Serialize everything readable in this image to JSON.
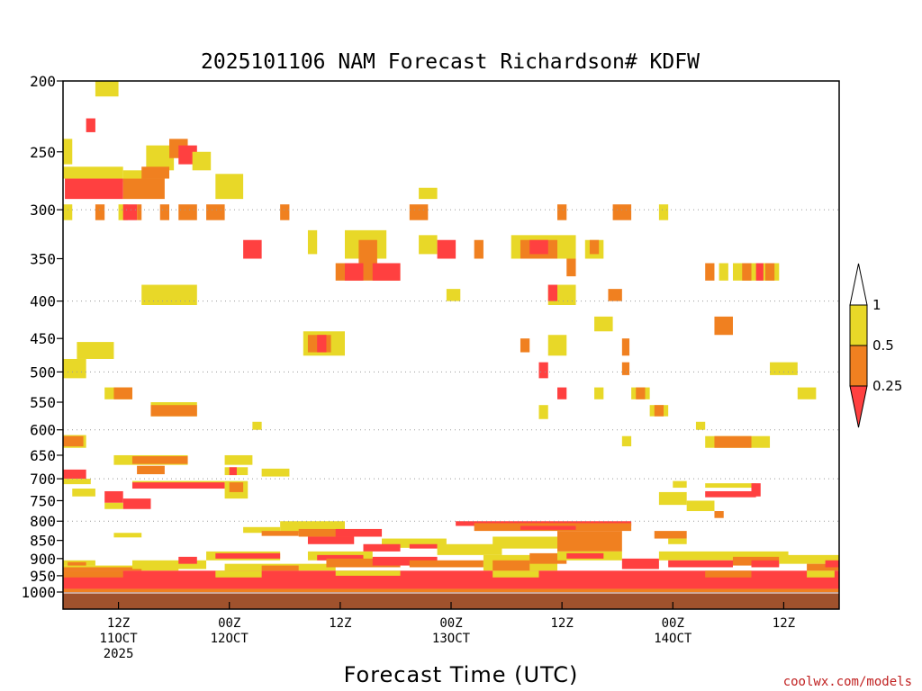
{
  "chart_data": {
    "type": "heatmap",
    "title": "2025101106 NAM Forecast Richardson# KDFW",
    "xlabel": "Forecast Time (UTC)",
    "ylabel": "",
    "credit": "coolwx.com/models",
    "y_scale": "log-pressure",
    "ylim": [
      1000,
      200
    ],
    "xlim_hours": [
      0,
      84
    ],
    "y_ticks": [
      200,
      250,
      300,
      350,
      400,
      450,
      500,
      550,
      600,
      650,
      700,
      750,
      800,
      850,
      900,
      950,
      1000
    ],
    "x_ticks": [
      {
        "hour": 6,
        "lines": [
          "12Z",
          "11OCT",
          "2025"
        ]
      },
      {
        "hour": 18,
        "lines": [
          "00Z",
          "12OCT"
        ]
      },
      {
        "hour": 30,
        "lines": [
          "12Z"
        ]
      },
      {
        "hour": 42,
        "lines": [
          "00Z",
          "13OCT"
        ]
      },
      {
        "hour": 54,
        "lines": [
          "12Z"
        ]
      },
      {
        "hour": 66,
        "lines": [
          "00Z",
          "14OCT"
        ]
      },
      {
        "hour": 78,
        "lines": [
          "12Z"
        ]
      }
    ],
    "grid": {
      "horizontal_dotted": true,
      "vertical": false
    },
    "color_scale": {
      "levels": [
        0.25,
        0.5,
        1
      ],
      "labels": [
        "0.25",
        "0.5",
        "1"
      ],
      "colors": {
        "lt_0.25": "#ff4040",
        "0.25_0.5": "#f08020",
        "0.5_1": "#e8d828",
        "gt_1": "#ffffff"
      }
    },
    "ground_color": "#a0522d",
    "cells": [
      {
        "h0": 3.5,
        "h1": 6.0,
        "p0": 200,
        "p1": 210,
        "c": "y"
      },
      {
        "h0": 2.5,
        "h1": 3.5,
        "p0": 225,
        "p1": 235,
        "c": "r"
      },
      {
        "h0": 0,
        "h1": 1.0,
        "p0": 240,
        "p1": 260,
        "c": "y"
      },
      {
        "h0": 9.0,
        "h1": 12.0,
        "p0": 245,
        "p1": 265,
        "c": "y"
      },
      {
        "h0": 11.5,
        "h1": 13.5,
        "p0": 240,
        "p1": 255,
        "c": "o"
      },
      {
        "h0": 12.5,
        "h1": 14.5,
        "p0": 245,
        "p1": 260,
        "c": "r"
      },
      {
        "h0": 14.0,
        "h1": 16.0,
        "p0": 250,
        "p1": 265,
        "c": "y"
      },
      {
        "h0": 0,
        "h1": 6.5,
        "p0": 262,
        "p1": 272,
        "c": "y"
      },
      {
        "h0": 6.5,
        "h1": 9.0,
        "p0": 265,
        "p1": 275,
        "c": "y"
      },
      {
        "h0": 0.2,
        "h1": 6.5,
        "p0": 272,
        "p1": 290,
        "c": "r"
      },
      {
        "h0": 6.5,
        "h1": 11.0,
        "p0": 272,
        "p1": 290,
        "c": "o"
      },
      {
        "h0": 8.5,
        "h1": 11.5,
        "p0": 262,
        "p1": 272,
        "c": "o"
      },
      {
        "h0": 16.5,
        "h1": 19.5,
        "p0": 268,
        "p1": 290,
        "c": "y"
      },
      {
        "h0": 0,
        "h1": 1.0,
        "p0": 295,
        "p1": 310,
        "c": "y"
      },
      {
        "h0": 3.5,
        "h1": 4.5,
        "p0": 295,
        "p1": 310,
        "c": "o"
      },
      {
        "h0": 6.0,
        "h1": 7.0,
        "p0": 295,
        "p1": 310,
        "c": "y"
      },
      {
        "h0": 6.5,
        "h1": 8.0,
        "p0": 295,
        "p1": 310,
        "c": "r"
      },
      {
        "h0": 8.0,
        "h1": 8.5,
        "p0": 295,
        "p1": 310,
        "c": "o"
      },
      {
        "h0": 10.5,
        "h1": 11.5,
        "p0": 295,
        "p1": 310,
        "c": "o"
      },
      {
        "h0": 12.5,
        "h1": 14.5,
        "p0": 295,
        "p1": 310,
        "c": "o"
      },
      {
        "h0": 15.5,
        "h1": 17.5,
        "p0": 295,
        "p1": 310,
        "c": "o"
      },
      {
        "h0": 23.5,
        "h1": 24.5,
        "p0": 295,
        "p1": 310,
        "c": "o"
      },
      {
        "h0": 37.5,
        "h1": 39.5,
        "p0": 295,
        "p1": 310,
        "c": "o"
      },
      {
        "h0": 53.5,
        "h1": 54.5,
        "p0": 295,
        "p1": 310,
        "c": "o"
      },
      {
        "h0": 59.5,
        "h1": 61.5,
        "p0": 295,
        "p1": 310,
        "c": "o"
      },
      {
        "h0": 64.5,
        "h1": 65.5,
        "p0": 295,
        "p1": 310,
        "c": "y"
      },
      {
        "h0": 38.5,
        "h1": 40.5,
        "p0": 280,
        "p1": 290,
        "c": "y"
      },
      {
        "h0": 19.5,
        "h1": 21.5,
        "p0": 330,
        "p1": 350,
        "c": "r"
      },
      {
        "h0": 26.5,
        "h1": 27.5,
        "p0": 320,
        "p1": 345,
        "c": "y"
      },
      {
        "h0": 30.5,
        "h1": 35.0,
        "p0": 320,
        "p1": 350,
        "c": "y"
      },
      {
        "h0": 32.0,
        "h1": 34.0,
        "p0": 330,
        "p1": 360,
        "c": "o"
      },
      {
        "h0": 29.5,
        "h1": 36.5,
        "p0": 355,
        "p1": 375,
        "c": "o"
      },
      {
        "h0": 30.5,
        "h1": 32.5,
        "p0": 355,
        "p1": 375,
        "c": "r"
      },
      {
        "h0": 33.5,
        "h1": 36.5,
        "p0": 355,
        "p1": 375,
        "c": "r"
      },
      {
        "h0": 38.5,
        "h1": 40.5,
        "p0": 325,
        "p1": 345,
        "c": "y"
      },
      {
        "h0": 40.5,
        "h1": 42.5,
        "p0": 330,
        "p1": 350,
        "c": "r"
      },
      {
        "h0": 44.5,
        "h1": 45.5,
        "p0": 330,
        "p1": 350,
        "c": "o"
      },
      {
        "h0": 48.5,
        "h1": 55.5,
        "p0": 325,
        "p1": 350,
        "c": "y"
      },
      {
        "h0": 49.5,
        "h1": 53.5,
        "p0": 330,
        "p1": 350,
        "c": "o"
      },
      {
        "h0": 50.5,
        "h1": 52.5,
        "p0": 330,
        "p1": 345,
        "c": "r"
      },
      {
        "h0": 56.5,
        "h1": 58.5,
        "p0": 330,
        "p1": 350,
        "c": "y"
      },
      {
        "h0": 57.0,
        "h1": 58.0,
        "p0": 330,
        "p1": 345,
        "c": "o"
      },
      {
        "h0": 54.5,
        "h1": 55.5,
        "p0": 350,
        "p1": 370,
        "c": "o"
      },
      {
        "h0": 69.5,
        "h1": 70.5,
        "p0": 355,
        "p1": 375,
        "c": "o"
      },
      {
        "h0": 71.0,
        "h1": 72.0,
        "p0": 355,
        "p1": 375,
        "c": "y"
      },
      {
        "h0": 72.5,
        "h1": 77.5,
        "p0": 355,
        "p1": 375,
        "c": "y"
      },
      {
        "h0": 73.5,
        "h1": 74.5,
        "p0": 355,
        "p1": 375,
        "c": "o"
      },
      {
        "h0": 75.0,
        "h1": 75.8,
        "p0": 355,
        "p1": 375,
        "c": "r"
      },
      {
        "h0": 76.0,
        "h1": 77.0,
        "p0": 355,
        "p1": 375,
        "c": "o"
      },
      {
        "h0": 8.5,
        "h1": 14.5,
        "p0": 380,
        "p1": 405,
        "c": "y"
      },
      {
        "h0": 52.5,
        "h1": 55.5,
        "p0": 380,
        "p1": 405,
        "c": "y"
      },
      {
        "h0": 52.5,
        "h1": 53.5,
        "p0": 380,
        "p1": 400,
        "c": "r"
      },
      {
        "h0": 41.5,
        "h1": 43.0,
        "p0": 385,
        "p1": 400,
        "c": "y"
      },
      {
        "h0": 59.0,
        "h1": 60.5,
        "p0": 385,
        "p1": 400,
        "c": "o"
      },
      {
        "h0": 57.5,
        "h1": 59.5,
        "p0": 420,
        "p1": 440,
        "c": "y"
      },
      {
        "h0": 70.5,
        "h1": 72.5,
        "p0": 420,
        "p1": 445,
        "c": "o"
      },
      {
        "h0": 1.5,
        "h1": 5.5,
        "p0": 455,
        "p1": 480,
        "c": "y"
      },
      {
        "h0": 26.0,
        "h1": 30.5,
        "p0": 440,
        "p1": 475,
        "c": "y"
      },
      {
        "h0": 26.5,
        "h1": 29.0,
        "p0": 445,
        "p1": 470,
        "c": "o"
      },
      {
        "h0": 27.5,
        "h1": 28.5,
        "p0": 445,
        "p1": 470,
        "c": "r"
      },
      {
        "h0": 52.5,
        "h1": 54.5,
        "p0": 445,
        "p1": 475,
        "c": "y"
      },
      {
        "h0": 49.5,
        "h1": 50.5,
        "p0": 450,
        "p1": 470,
        "c": "o"
      },
      {
        "h0": 60.5,
        "h1": 61.3,
        "p0": 450,
        "p1": 475,
        "c": "o"
      },
      {
        "h0": 0,
        "h1": 2.5,
        "p0": 480,
        "p1": 510,
        "c": "y"
      },
      {
        "h0": 51.5,
        "h1": 52.5,
        "p0": 485,
        "p1": 510,
        "c": "r"
      },
      {
        "h0": 60.5,
        "h1": 61.3,
        "p0": 485,
        "p1": 505,
        "c": "o"
      },
      {
        "h0": 76.5,
        "h1": 79.5,
        "p0": 485,
        "p1": 505,
        "c": "y"
      },
      {
        "h0": 4.5,
        "h1": 7.5,
        "p0": 525,
        "p1": 545,
        "c": "y"
      },
      {
        "h0": 5.5,
        "h1": 7.5,
        "p0": 525,
        "p1": 545,
        "c": "o"
      },
      {
        "h0": 53.5,
        "h1": 54.5,
        "p0": 525,
        "p1": 545,
        "c": "r"
      },
      {
        "h0": 57.5,
        "h1": 58.5,
        "p0": 525,
        "p1": 545,
        "c": "y"
      },
      {
        "h0": 61.5,
        "h1": 63.5,
        "p0": 525,
        "p1": 545,
        "c": "y"
      },
      {
        "h0": 62.0,
        "h1": 63.0,
        "p0": 525,
        "p1": 545,
        "c": "o"
      },
      {
        "h0": 79.5,
        "h1": 81.5,
        "p0": 525,
        "p1": 545,
        "c": "y"
      },
      {
        "h0": 9.5,
        "h1": 14.5,
        "p0": 550,
        "p1": 575,
        "c": "y"
      },
      {
        "h0": 9.5,
        "h1": 14.5,
        "p0": 555,
        "p1": 575,
        "c": "o"
      },
      {
        "h0": 51.5,
        "h1": 52.5,
        "p0": 555,
        "p1": 580,
        "c": "y"
      },
      {
        "h0": 63.5,
        "h1": 65.5,
        "p0": 555,
        "p1": 575,
        "c": "y"
      },
      {
        "h0": 64.0,
        "h1": 65.0,
        "p0": 555,
        "p1": 575,
        "c": "o"
      },
      {
        "h0": 20.5,
        "h1": 21.5,
        "p0": 585,
        "p1": 600,
        "c": "y"
      },
      {
        "h0": 68.5,
        "h1": 69.5,
        "p0": 585,
        "p1": 600,
        "c": "y"
      },
      {
        "h0": 0,
        "h1": 2.5,
        "p0": 610,
        "p1": 635,
        "c": "y"
      },
      {
        "h0": 0,
        "h1": 2.2,
        "p0": 612,
        "p1": 632,
        "c": "o"
      },
      {
        "h0": 60.5,
        "h1": 61.5,
        "p0": 612,
        "p1": 632,
        "c": "y"
      },
      {
        "h0": 69.5,
        "h1": 76.5,
        "p0": 612,
        "p1": 635,
        "c": "y"
      },
      {
        "h0": 70.5,
        "h1": 74.5,
        "p0": 612,
        "p1": 635,
        "c": "o"
      },
      {
        "h0": 5.5,
        "h1": 13.5,
        "p0": 650,
        "p1": 670,
        "c": "y"
      },
      {
        "h0": 7.5,
        "h1": 13.5,
        "p0": 652,
        "p1": 668,
        "c": "o"
      },
      {
        "h0": 17.5,
        "h1": 20.5,
        "p0": 650,
        "p1": 670,
        "c": "y"
      },
      {
        "h0": 8.0,
        "h1": 11.0,
        "p0": 672,
        "p1": 690,
        "c": "o"
      },
      {
        "h0": 17.5,
        "h1": 20.0,
        "p0": 675,
        "p1": 692,
        "c": "y"
      },
      {
        "h0": 18.0,
        "h1": 18.8,
        "p0": 675,
        "p1": 692,
        "c": "r"
      },
      {
        "h0": 21.5,
        "h1": 24.5,
        "p0": 678,
        "p1": 695,
        "c": "y"
      },
      {
        "h0": 0,
        "h1": 2.5,
        "p0": 680,
        "p1": 700,
        "c": "r"
      },
      {
        "h0": 0,
        "h1": 3.0,
        "p0": 700,
        "p1": 712,
        "c": "y"
      },
      {
        "h0": 7.5,
        "h1": 17.5,
        "p0": 705,
        "p1": 720,
        "c": "y"
      },
      {
        "h0": 7.5,
        "h1": 17.5,
        "p0": 708,
        "p1": 722,
        "c": "r"
      },
      {
        "h0": 17.5,
        "h1": 20.0,
        "p0": 705,
        "p1": 745,
        "c": "y"
      },
      {
        "h0": 18.0,
        "h1": 19.5,
        "p0": 708,
        "p1": 730,
        "c": "o"
      },
      {
        "h0": 1.0,
        "h1": 3.5,
        "p0": 722,
        "p1": 740,
        "c": "y"
      },
      {
        "h0": 4.5,
        "h1": 6.5,
        "p0": 728,
        "p1": 755,
        "c": "r"
      },
      {
        "h0": 6.5,
        "h1": 9.5,
        "p0": 745,
        "p1": 770,
        "c": "r"
      },
      {
        "h0": 4.5,
        "h1": 6.5,
        "p0": 755,
        "p1": 770,
        "c": "y"
      },
      {
        "h0": 66.0,
        "h1": 67.5,
        "p0": 705,
        "p1": 720,
        "c": "y"
      },
      {
        "h0": 69.5,
        "h1": 75.0,
        "p0": 710,
        "p1": 720,
        "c": "y"
      },
      {
        "h0": 74.5,
        "h1": 75.5,
        "p0": 710,
        "p1": 740,
        "c": "r"
      },
      {
        "h0": 69.5,
        "h1": 75.0,
        "p0": 728,
        "p1": 742,
        "c": "r"
      },
      {
        "h0": 64.5,
        "h1": 67.5,
        "p0": 730,
        "p1": 760,
        "c": "y"
      },
      {
        "h0": 67.5,
        "h1": 70.5,
        "p0": 750,
        "p1": 775,
        "c": "y"
      },
      {
        "h0": 70.5,
        "h1": 71.5,
        "p0": 775,
        "p1": 792,
        "c": "o"
      },
      {
        "h0": 5.5,
        "h1": 8.5,
        "p0": 830,
        "p1": 842,
        "c": "y"
      },
      {
        "h0": 19.5,
        "h1": 23.5,
        "p0": 815,
        "p1": 830,
        "c": "y"
      },
      {
        "h0": 23.5,
        "h1": 30.5,
        "p0": 800,
        "p1": 830,
        "c": "y"
      },
      {
        "h0": 21.5,
        "h1": 25.5,
        "p0": 825,
        "p1": 838,
        "c": "o"
      },
      {
        "h0": 25.5,
        "h1": 34.5,
        "p0": 820,
        "p1": 840,
        "c": "o"
      },
      {
        "h0": 26.5,
        "h1": 31.5,
        "p0": 840,
        "p1": 860,
        "c": "r"
      },
      {
        "h0": 29.5,
        "h1": 34.5,
        "p0": 820,
        "p1": 840,
        "c": "r"
      },
      {
        "h0": 42.5,
        "h1": 61.5,
        "p0": 800,
        "p1": 812,
        "c": "r"
      },
      {
        "h0": 44.5,
        "h1": 61.5,
        "p0": 805,
        "p1": 825,
        "c": "o"
      },
      {
        "h0": 49.5,
        "h1": 55.5,
        "p0": 812,
        "p1": 822,
        "c": "r"
      },
      {
        "h0": 53.5,
        "h1": 60.5,
        "p0": 825,
        "p1": 880,
        "c": "o"
      },
      {
        "h0": 46.5,
        "h1": 53.5,
        "p0": 840,
        "p1": 872,
        "c": "y"
      },
      {
        "h0": 34.5,
        "h1": 41.5,
        "p0": 845,
        "p1": 870,
        "c": "y"
      },
      {
        "h0": 32.5,
        "h1": 36.5,
        "p0": 860,
        "p1": 880,
        "c": "r"
      },
      {
        "h0": 37.5,
        "h1": 40.5,
        "p0": 860,
        "p1": 872,
        "c": "r"
      },
      {
        "h0": 40.5,
        "h1": 47.5,
        "p0": 860,
        "p1": 890,
        "c": "y"
      },
      {
        "h0": 64.0,
        "h1": 67.5,
        "p0": 825,
        "p1": 845,
        "c": "o"
      },
      {
        "h0": 65.5,
        "h1": 67.5,
        "p0": 845,
        "p1": 860,
        "c": "y"
      },
      {
        "h0": 0,
        "h1": 3.5,
        "p0": 905,
        "p1": 920,
        "c": "y"
      },
      {
        "h0": 0.5,
        "h1": 2.5,
        "p0": 910,
        "p1": 925,
        "c": "o"
      },
      {
        "h0": 0,
        "h1": 12.5,
        "p0": 920,
        "p1": 935,
        "c": "y"
      },
      {
        "h0": 0,
        "h1": 8.5,
        "p0": 925,
        "p1": 935,
        "c": "o"
      },
      {
        "h0": 7.5,
        "h1": 15.5,
        "p0": 905,
        "p1": 930,
        "c": "y"
      },
      {
        "h0": 12.5,
        "h1": 14.5,
        "p0": 895,
        "p1": 915,
        "c": "r"
      },
      {
        "h0": 15.5,
        "h1": 23.5,
        "p0": 880,
        "p1": 905,
        "c": "y"
      },
      {
        "h0": 16.5,
        "h1": 23.5,
        "p0": 885,
        "p1": 900,
        "c": "r"
      },
      {
        "h0": 17.5,
        "h1": 29.5,
        "p0": 915,
        "p1": 935,
        "c": "y"
      },
      {
        "h0": 21.5,
        "h1": 25.5,
        "p0": 920,
        "p1": 935,
        "c": "o"
      },
      {
        "h0": 26.5,
        "h1": 33.5,
        "p0": 880,
        "p1": 905,
        "c": "y"
      },
      {
        "h0": 27.5,
        "h1": 32.5,
        "p0": 890,
        "p1": 905,
        "c": "r"
      },
      {
        "h0": 28.5,
        "h1": 36.5,
        "p0": 900,
        "p1": 925,
        "c": "o"
      },
      {
        "h0": 33.5,
        "h1": 40.5,
        "p0": 895,
        "p1": 920,
        "c": "r"
      },
      {
        "h0": 37.5,
        "h1": 45.5,
        "p0": 905,
        "p1": 925,
        "c": "o"
      },
      {
        "h0": 45.5,
        "h1": 53.5,
        "p0": 890,
        "p1": 935,
        "c": "y"
      },
      {
        "h0": 46.5,
        "h1": 50.5,
        "p0": 905,
        "p1": 935,
        "c": "o"
      },
      {
        "h0": 50.5,
        "h1": 54.5,
        "p0": 885,
        "p1": 915,
        "c": "o"
      },
      {
        "h0": 53.5,
        "h1": 60.5,
        "p0": 880,
        "p1": 905,
        "c": "y"
      },
      {
        "h0": 54.5,
        "h1": 58.5,
        "p0": 885,
        "p1": 900,
        "c": "r"
      },
      {
        "h0": 60.5,
        "h1": 64.5,
        "p0": 900,
        "p1": 930,
        "c": "r"
      },
      {
        "h0": 64.5,
        "h1": 78.5,
        "p0": 880,
        "p1": 905,
        "c": "y"
      },
      {
        "h0": 65.5,
        "h1": 72.5,
        "p0": 905,
        "p1": 925,
        "c": "r"
      },
      {
        "h0": 72.5,
        "h1": 77.5,
        "p0": 895,
        "p1": 920,
        "c": "o"
      },
      {
        "h0": 74.5,
        "h1": 77.5,
        "p0": 905,
        "p1": 925,
        "c": "r"
      },
      {
        "h0": 77.5,
        "h1": 84.0,
        "p0": 890,
        "p1": 915,
        "c": "y"
      },
      {
        "h0": 80.5,
        "h1": 84.0,
        "p0": 915,
        "p1": 935,
        "c": "o"
      },
      {
        "h0": 82.5,
        "h1": 84.0,
        "p0": 905,
        "p1": 925,
        "c": "r"
      },
      {
        "h0": 0,
        "h1": 84.0,
        "p0": 935,
        "p1": 990,
        "c": "r"
      },
      {
        "h0": 0,
        "h1": 6.5,
        "p0": 935,
        "p1": 955,
        "c": "o"
      },
      {
        "h0": 16.5,
        "h1": 21.5,
        "p0": 935,
        "p1": 955,
        "c": "y"
      },
      {
        "h0": 29.5,
        "h1": 36.5,
        "p0": 935,
        "p1": 950,
        "c": "y"
      },
      {
        "h0": 46.5,
        "h1": 51.5,
        "p0": 935,
        "p1": 955,
        "c": "y"
      },
      {
        "h0": 69.5,
        "h1": 74.5,
        "p0": 935,
        "p1": 955,
        "c": "o"
      },
      {
        "h0": 80.5,
        "h1": 83.5,
        "p0": 935,
        "p1": 955,
        "c": "y"
      },
      {
        "h0": 0,
        "h1": 84.0,
        "p0": 990,
        "p1": 1000,
        "c": "o"
      }
    ]
  }
}
